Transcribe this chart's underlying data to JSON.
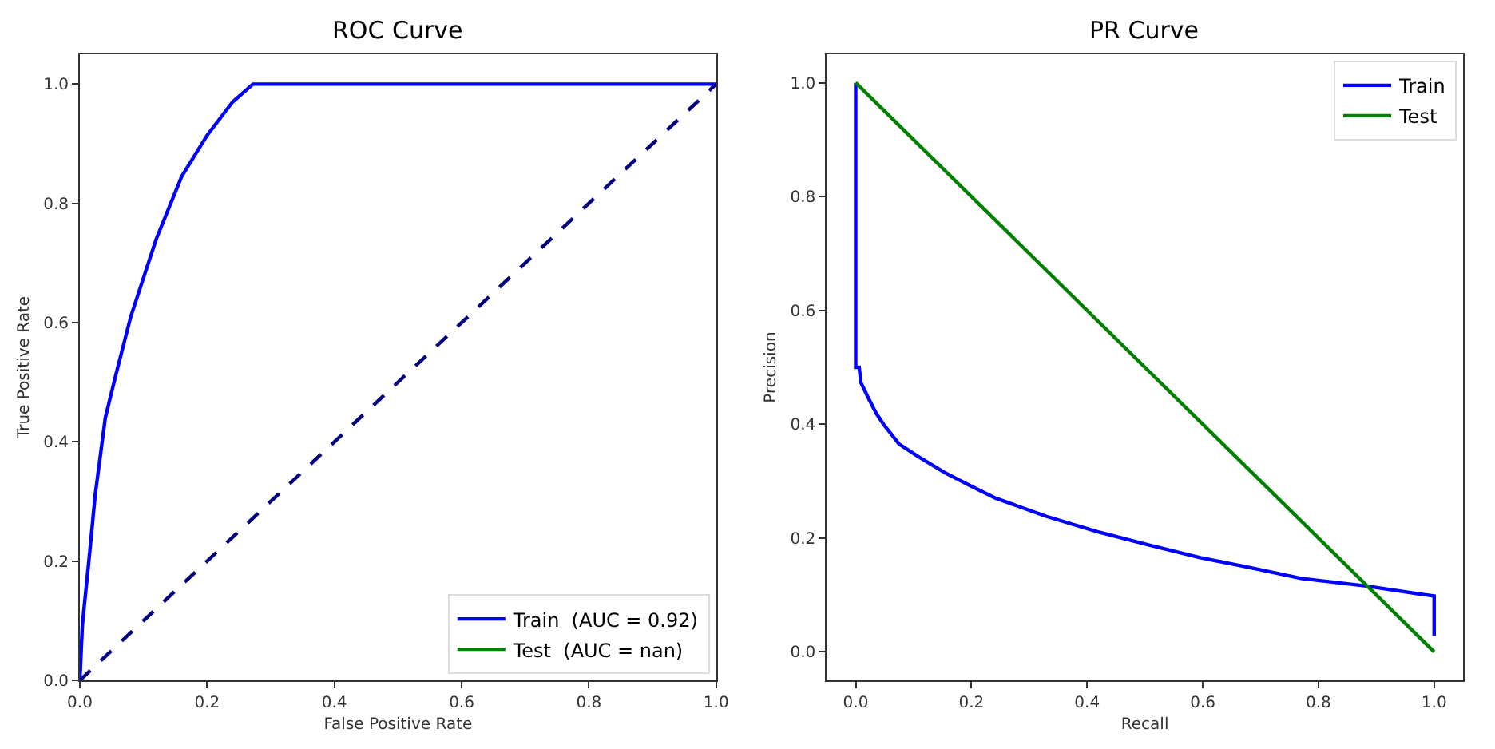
{
  "chart_data": [
    {
      "type": "line",
      "title": "ROC Curve",
      "xlabel": "False Positive Rate",
      "ylabel": "True Positive Rate",
      "xlim": [
        0,
        1
      ],
      "ylim": [
        0,
        1.05
      ],
      "xticks": [
        {
          "value": 0,
          "label": "0.0"
        },
        {
          "value": 0.2,
          "label": "0.2"
        },
        {
          "value": 0.4,
          "label": "0.4"
        },
        {
          "value": 0.6,
          "label": "0.6"
        },
        {
          "value": 0.8,
          "label": "0.8"
        },
        {
          "value": 1,
          "label": "1.0"
        }
      ],
      "yticks": [
        {
          "value": 0,
          "label": "0.0"
        },
        {
          "value": 0.2,
          "label": "0.2"
        },
        {
          "value": 0.4,
          "label": "0.4"
        },
        {
          "value": 0.6,
          "label": "0.6"
        },
        {
          "value": 0.8,
          "label": "0.8"
        },
        {
          "value": 1,
          "label": "1.0"
        }
      ],
      "legend": "bottom right",
      "series": [
        {
          "name": "Train  (AUC = 0.92)",
          "color": "#0000ff",
          "x": [
            0,
            0.004,
            0.016,
            0.024,
            0.04,
            0.056,
            0.08,
            0.12,
            0.16,
            0.2,
            0.24,
            0.272,
            0.5,
            1.0
          ],
          "values": [
            0,
            0.093,
            0.22,
            0.31,
            0.44,
            0.51,
            0.61,
            0.74,
            0.845,
            0.914,
            0.97,
            1.0,
            1.0,
            1.0
          ]
        },
        {
          "name": "Test  (AUC = nan)",
          "color": "#008000"
        },
        {
          "color": "#000080",
          "line_style": "dashed",
          "x": [
            0,
            1
          ],
          "values": [
            0,
            1
          ]
        }
      ]
    },
    {
      "type": "line",
      "title": "PR Curve",
      "xlabel": "Recall",
      "ylabel": "Precision",
      "xlim": [
        -0.05,
        1.05
      ],
      "ylim": [
        -0.05,
        1.05
      ],
      "xticks": [
        {
          "value": 0,
          "label": "0.0"
        },
        {
          "value": 0.2,
          "label": "0.2"
        },
        {
          "value": 0.4,
          "label": "0.4"
        },
        {
          "value": 0.6,
          "label": "0.6"
        },
        {
          "value": 0.8,
          "label": "0.8"
        },
        {
          "value": 1,
          "label": "1.0"
        }
      ],
      "yticks": [
        {
          "value": 0,
          "label": "0.0"
        },
        {
          "value": 0.2,
          "label": "0.2"
        },
        {
          "value": 0.4,
          "label": "0.4"
        },
        {
          "value": 0.6,
          "label": "0.6"
        },
        {
          "value": 0.8,
          "label": "0.8"
        },
        {
          "value": 1,
          "label": "1.0"
        }
      ],
      "legend": "top right",
      "series": [
        {
          "name": "Train",
          "color": "#0000ff",
          "x": [
            0,
            0,
            0.006,
            0.009,
            0.022,
            0.035,
            0.048,
            0.075,
            0.11,
            0.154,
            0.198,
            0.242,
            0.33,
            0.418,
            0.506,
            0.594,
            0.682,
            0.77,
            0.88,
            1.0,
            1.0
          ],
          "values": [
            1.0,
            0.5,
            0.5,
            0.473,
            0.446,
            0.42,
            0.4,
            0.365,
            0.342,
            0.315,
            0.292,
            0.27,
            0.238,
            0.211,
            0.188,
            0.166,
            0.148,
            0.129,
            0.116,
            0.098,
            0.028
          ]
        },
        {
          "name": "Test",
          "color": "#008000",
          "x": [
            0,
            1
          ],
          "values": [
            1,
            0
          ]
        }
      ]
    }
  ]
}
